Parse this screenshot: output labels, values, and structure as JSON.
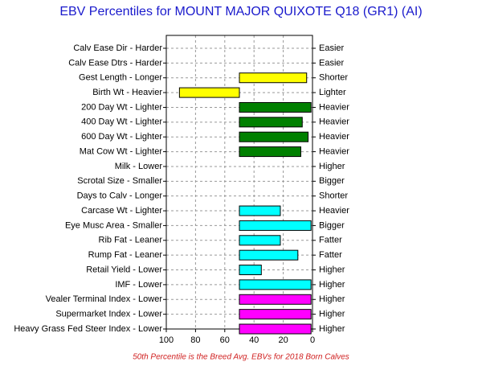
{
  "chart_data": {
    "type": "hbar",
    "title": "EBV Percentiles for MOUNT MAJOR QUIXOTE Q18 (GR1) (AI)",
    "note": "50th Percentile is the Breed Avg. EBVs for 2018 Born Calves",
    "categories": [
      "Calv Ease Dir - Harder",
      "Calv Ease Dtrs - Harder",
      "Gest Length - Longer",
      "Birth Wt - Heavier",
      "200 Day Wt - Lighter",
      "400 Day Wt - Lighter",
      "600 Day Wt - Lighter",
      "Mat Cow Wt - Lighter",
      "Milk - Lower",
      "Scrotal Size - Smaller",
      "Days to Calv - Longer",
      "Carcase Wt - Lighter",
      "Eye Musc Area - Smaller",
      "Rib Fat - Leaner",
      "Rump Fat - Leaner",
      "Retail Yield - Lower",
      "IMF - Lower",
      "Vealer Terminal Index - Lower",
      "Supermarket Index - Lower",
      "Heavy Grass Fed Steer Index - Lower"
    ],
    "right_labels": [
      "Easier",
      "Easier",
      "Shorter",
      "Lighter",
      "Heavier",
      "Heavier",
      "Heavier",
      "Heavier",
      "Higher",
      "Bigger",
      "Shorter",
      "Heavier",
      "Bigger",
      "Fatter",
      "Fatter",
      "Higher",
      "Higher",
      "Higher",
      "Higher",
      "Higher"
    ],
    "values": [
      null,
      null,
      4,
      91,
      1,
      7,
      3,
      8,
      null,
      null,
      null,
      22,
      1,
      22,
      10,
      35,
      1,
      1,
      1,
      1
    ],
    "colors": [
      null,
      null,
      "#ffff00",
      "#ffff00",
      "#008000",
      "#008000",
      "#008000",
      "#008000",
      null,
      null,
      null,
      "#00ffff",
      "#00ffff",
      "#00ffff",
      "#00ffff",
      "#00ffff",
      "#00ffff",
      "#ff00ff",
      "#ff00ff",
      "#ff00ff"
    ],
    "bar_base": 50,
    "xlim": [
      100,
      0
    ],
    "xticks": [
      100,
      80,
      60,
      40,
      20,
      0
    ],
    "grid": true
  }
}
